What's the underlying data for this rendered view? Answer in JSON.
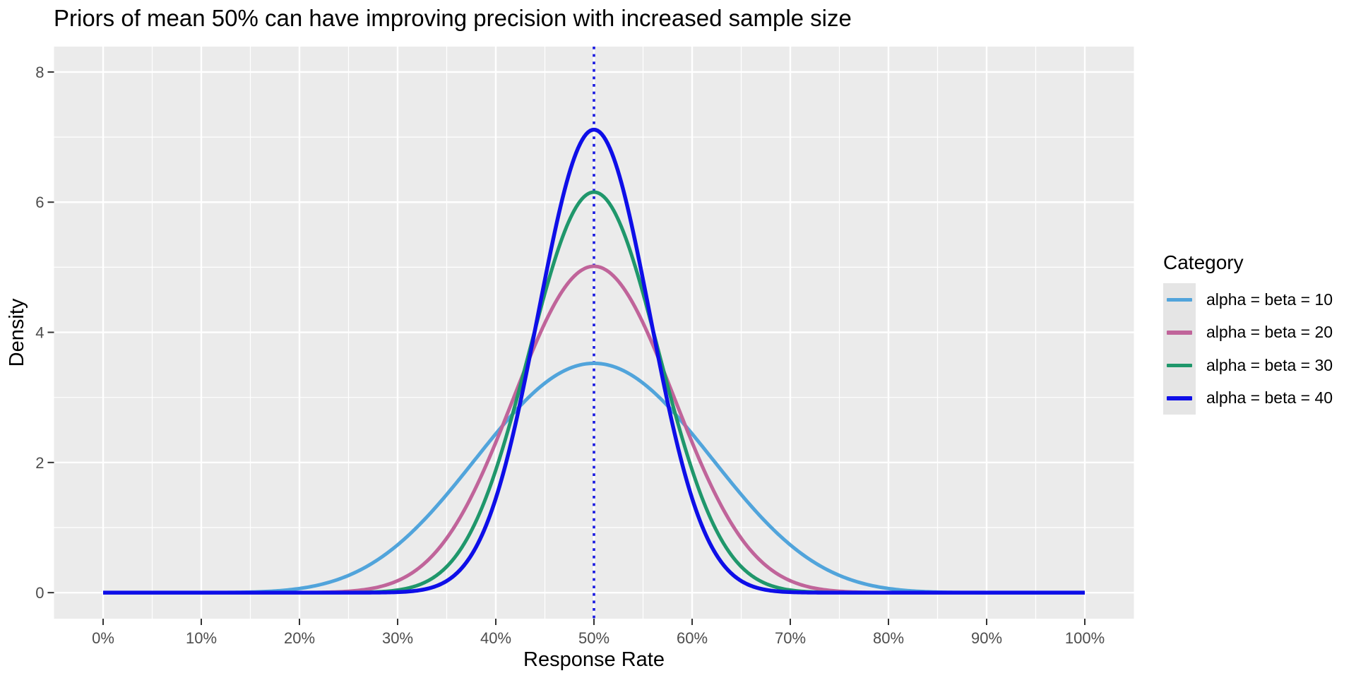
{
  "chart_data": {
    "type": "line",
    "title": "Priors of mean 50% can have improving precision with increased sample size",
    "xlabel": "Response Rate",
    "ylabel": "Density",
    "x_tick_labels": [
      "0%",
      "10%",
      "20%",
      "30%",
      "40%",
      "50%",
      "60%",
      "70%",
      "80%",
      "90%",
      "100%"
    ],
    "x_tick_values": [
      0,
      0.1,
      0.2,
      0.3,
      0.4,
      0.5,
      0.6,
      0.7,
      0.8,
      0.9,
      1.0
    ],
    "x_minor_tick_values": [
      0.05,
      0.15,
      0.25,
      0.35,
      0.45,
      0.55,
      0.65,
      0.75,
      0.85,
      0.95
    ],
    "y_tick_labels": [
      "0",
      "2",
      "4",
      "6",
      "8"
    ],
    "y_tick_values": [
      0,
      2,
      4,
      6,
      8
    ],
    "y_minor_tick_values": [
      1,
      3,
      5,
      7
    ],
    "xlim": [
      -0.05,
      1.05
    ],
    "ylim": [
      -0.4,
      8.39
    ],
    "grid": "on",
    "curve_family": "beta_probability_density",
    "x_range": [
      0,
      1
    ],
    "series": [
      {
        "name": "alpha = beta = 10",
        "alpha": 10,
        "beta": 10,
        "color": "#51A4DB",
        "linewidth": 5,
        "peak_x": 0.5,
        "peak_density": 3.52
      },
      {
        "name": "alpha = beta = 20",
        "alpha": 20,
        "beta": 20,
        "color": "#C0649A",
        "linewidth": 5,
        "peak_x": 0.5,
        "peak_density": 5.01
      },
      {
        "name": "alpha = beta = 30",
        "alpha": 30,
        "beta": 30,
        "color": "#1F976B",
        "linewidth": 5,
        "peak_x": 0.5,
        "peak_density": 6.16
      },
      {
        "name": "alpha = beta = 40",
        "alpha": 40,
        "beta": 40,
        "color": "#0E0EE8",
        "linewidth": 5.5,
        "peak_x": 0.5,
        "peak_density": 7.12
      }
    ],
    "reference_line": {
      "orientation": "vertical",
      "x": 0.5,
      "linetype": "dotted",
      "color": "#1A1AE0"
    },
    "legend": {
      "title": "Category",
      "position": "right"
    },
    "colors": {
      "panel_background": "#EBEBEB",
      "gridline": "#FFFFFF",
      "tick_mark": "#333333",
      "tick_label": "#4D4D4D",
      "axis_title": "#000000",
      "title_color": "#000000",
      "legend_key_background": "#E5E5E5",
      "plot_background": "#FFFFFF"
    }
  }
}
